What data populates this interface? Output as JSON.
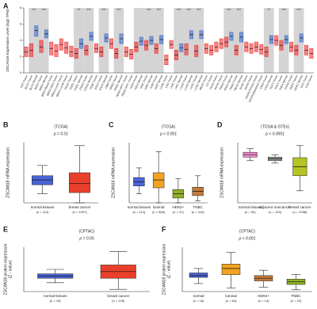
{
  "chart_data": [
    {
      "panel_label": "A",
      "type": "box",
      "y_label": [
        "ZSCAN18 Expression Level (log2 TPM)"
      ],
      "ylim": [
        0,
        8
      ],
      "yticks": [
        0,
        2,
        4,
        6,
        8
      ],
      "categories": [
        "ACC Tumor",
        "BLCA Tumor",
        "BLCA Normal",
        "BRCA Tumor",
        "BRCA Normal",
        "BRCA-Basal Tumor",
        "BRCA-Her2 Tumor",
        "BRCA-LumA Tumor",
        "BRCA-LumB Tumor",
        "CESC Tumor",
        "CHOL Tumor",
        "CHOL Normal",
        "COAD Tumor",
        "COAD Normal",
        "DLBC Tumor",
        "ESCA Tumor",
        "ESCA Normal",
        "GBM Tumor",
        "HNSC Tumor",
        "HNSC Normal",
        "HNSC-HPV+ Tumor",
        "HNSC-HPV- Tumor",
        "KICH Tumor",
        "KICH Normal",
        "KIRC Tumor",
        "KIRC Normal",
        "KIRP Tumor",
        "KIRP Normal",
        "LAML Tumor",
        "LGG Tumor",
        "LIHC Tumor",
        "LIHC Normal",
        "LUAD Tumor",
        "LUAD Normal",
        "LUSC Tumor",
        "LUSC Normal",
        "MESO Tumor",
        "OV Tumor",
        "PAAD Tumor",
        "PCPG Tumor",
        "PRAD Tumor",
        "PRAD Normal",
        "READ Tumor",
        "READ Normal",
        "SARC Tumor",
        "SKCM Tumor",
        "SKCM.Primary Tumor",
        "SKCM.Metastasis Tumor",
        "STAD Tumor",
        "STAD Normal",
        "TGCT Tumor",
        "THCA Tumor",
        "THCA Normal",
        "THYM Tumor",
        "UCEC Tumor",
        "UCEC Normal",
        "UCS Tumor",
        "UVM Tumor"
      ],
      "q1": [
        2.0,
        2.0,
        4.5,
        2.5,
        4.3,
        2.2,
        2.0,
        2.8,
        2.4,
        2.0,
        1.8,
        3.0,
        2.2,
        4.0,
        2.5,
        2.0,
        3.8,
        3.0,
        1.8,
        3.6,
        2.0,
        1.7,
        2.6,
        3.4,
        2.8,
        3.5,
        2.4,
        3.6,
        1.0,
        3.0,
        1.6,
        2.6,
        2.2,
        4.2,
        2.0,
        4.2,
        2.4,
        2.2,
        2.6,
        3.0,
        3.2,
        4.0,
        2.2,
        3.8,
        2.6,
        2.4,
        2.6,
        2.3,
        2.0,
        3.6,
        3.4,
        2.8,
        3.6,
        2.6,
        2.2,
        3.8,
        2.2,
        1.8
      ],
      "median": [
        2.6,
        2.8,
        5.2,
        3.2,
        4.8,
        3.0,
        2.7,
        3.5,
        3.1,
        2.6,
        2.4,
        3.6,
        2.8,
        4.5,
        3.0,
        2.6,
        4.3,
        3.6,
        2.4,
        4.2,
        2.6,
        2.3,
        3.2,
        3.9,
        3.4,
        4.0,
        3.0,
        4.1,
        1.6,
        3.5,
        2.2,
        3.1,
        2.9,
        4.7,
        2.7,
        4.7,
        3.0,
        2.8,
        3.2,
        3.6,
        3.8,
        4.5,
        2.8,
        4.4,
        3.2,
        3.0,
        3.2,
        2.9,
        2.6,
        4.1,
        4.0,
        3.4,
        4.1,
        3.2,
        2.8,
        4.3,
        2.8,
        2.4
      ],
      "q3": [
        3.2,
        3.6,
        5.8,
        4.0,
        5.3,
        3.8,
        3.5,
        4.2,
        3.8,
        3.3,
        3.0,
        4.2,
        3.4,
        5.0,
        3.6,
        3.2,
        4.8,
        4.2,
        3.0,
        4.8,
        3.2,
        2.9,
        3.8,
        4.4,
        4.0,
        4.5,
        3.6,
        4.6,
        2.2,
        4.0,
        2.8,
        3.6,
        3.6,
        5.2,
        3.4,
        5.2,
        3.6,
        3.4,
        3.8,
        4.2,
        4.4,
        5.0,
        3.4,
        5.0,
        3.8,
        3.6,
        3.8,
        3.5,
        3.2,
        4.6,
        4.6,
        4.0,
        4.6,
        3.8,
        3.4,
        4.8,
        3.4,
        3.0
      ],
      "colors": [
        "#e22",
        "#e22",
        "#36c",
        "#e22",
        "#36c",
        "#e22",
        "#e22",
        "#e22",
        "#e22",
        "#e22",
        "#e22",
        "#36c",
        "#e22",
        "#36c",
        "#e22",
        "#e22",
        "#36c",
        "#e22",
        "#e22",
        "#36c",
        "#e22",
        "#e22",
        "#e22",
        "#36c",
        "#e22",
        "#36c",
        "#e22",
        "#36c",
        "#e22",
        "#e22",
        "#e22",
        "#36c",
        "#e22",
        "#36c",
        "#e22",
        "#36c",
        "#e22",
        "#e22",
        "#e22",
        "#e22",
        "#e22",
        "#36c",
        "#e22",
        "#36c",
        "#e22",
        "#e22",
        "#e22",
        "#e22",
        "#e22",
        "#36c",
        "#e22",
        "#e22",
        "#36c",
        "#e22",
        "#e22",
        "#36c",
        "#e22",
        "#e22"
      ],
      "annotations": [
        {
          "index": 1,
          "text": "***"
        },
        {
          "index": 3,
          "text": "***"
        },
        {
          "index": 10,
          "text": "**"
        },
        {
          "index": 12,
          "text": "***"
        },
        {
          "index": 15,
          "text": "***"
        },
        {
          "index": 18,
          "text": "***"
        },
        {
          "index": 24,
          "text": "***"
        },
        {
          "index": 26,
          "text": "***"
        },
        {
          "index": 30,
          "text": "***"
        },
        {
          "index": 32,
          "text": "***"
        },
        {
          "index": 34,
          "text": "***"
        },
        {
          "index": 40,
          "text": "***"
        },
        {
          "index": 42,
          "text": "***"
        },
        {
          "index": 48,
          "text": "**"
        },
        {
          "index": 51,
          "text": "***"
        },
        {
          "index": 54,
          "text": "***"
        }
      ]
    },
    {
      "panel_label": "B",
      "type": "box",
      "title": "(TCGA)",
      "annotation": "p = 0.01",
      "y_label": [
        "ZSCAN18 mRNA expression"
      ],
      "ylim": [
        0,
        10
      ],
      "categories": [
        "normal tissues",
        "breast cancer"
      ],
      "n_labels": [
        "(n = 114)",
        "(n = 1097)"
      ],
      "low": [
        1.5,
        0
      ],
      "q1": [
        3.0,
        1.7
      ],
      "median": [
        3.8,
        3.2
      ],
      "q3": [
        4.5,
        5.0
      ],
      "high": [
        6.2,
        9.5
      ],
      "colors": [
        "#4a64d8",
        "#e8402a"
      ]
    },
    {
      "panel_label": "C",
      "type": "box",
      "title": "(TCGA)",
      "annotation": "p < 0.001",
      "y_label": [
        "ZSCAN18 mRNA expression"
      ],
      "ylim": [
        0,
        10
      ],
      "categories": [
        "normal tissues",
        "luminal",
        "HER2+",
        "TNBC"
      ],
      "n_labels": [
        "(n = 114)",
        "(n = 566)",
        "(n = 37)",
        "(n = 116)"
      ],
      "low": [
        1.5,
        0,
        0,
        0.3
      ],
      "q1": [
        2.8,
        2.5,
        0.8,
        1.2
      ],
      "median": [
        3.5,
        3.8,
        1.5,
        1.9
      ],
      "q3": [
        4.2,
        5.0,
        2.2,
        2.6
      ],
      "high": [
        5.8,
        8.5,
        4.0,
        4.5
      ],
      "colors": [
        "#4a64d8",
        "#f2a324",
        "#8fb226",
        "#c27a3a"
      ]
    },
    {
      "panel_label": "D",
      "type": "box",
      "title": "(TCGA & GTEx)",
      "annotation": "p < 0.0001",
      "y_label": [
        "ZSCAN18 mRNA expression"
      ],
      "ylim": [
        0,
        10
      ],
      "categories": [
        "normal tissues",
        "adjacent noncancer",
        "breast cancer"
      ],
      "n_labels": [
        "(n = 92)",
        "(n = 104)",
        "(n = 1038)"
      ],
      "low": [
        7.0,
        6.6,
        2.0
      ],
      "q1": [
        7.6,
        7.0,
        4.5
      ],
      "median": [
        8.0,
        7.3,
        6.0
      ],
      "q3": [
        8.4,
        7.6,
        7.5
      ],
      "high": [
        9.0,
        8.0,
        9.5
      ],
      "colors": [
        "#f08ac8",
        "#9a9a9a",
        "#b4c424"
      ]
    },
    {
      "panel_label": "E",
      "type": "box",
      "title": "(CPTAC)",
      "annotation": "p = 0.05",
      "y_label": [
        "ZSCAN18 protein expression",
        "(Z - value)"
      ],
      "ylim": [
        0,
        10
      ],
      "categories": [
        "normal tissues",
        "breast cancer"
      ],
      "n_labels": [
        "(n = 18)",
        "(n = 125)"
      ],
      "low": [
        2.0,
        0.5
      ],
      "q1": [
        3.0,
        3.0
      ],
      "median": [
        3.5,
        4.5
      ],
      "q3": [
        4.0,
        6.0
      ],
      "high": [
        5.0,
        9.0
      ],
      "colors": [
        "#4a64d8",
        "#e8402a"
      ]
    },
    {
      "panel_label": "F",
      "type": "box",
      "title": "(CPTAC)",
      "annotation": "p < 0.001",
      "y_label": [
        "ZSCAN18 protein expression",
        "(Z - value)"
      ],
      "ylim": [
        0,
        10
      ],
      "categories": [
        "normal",
        "luminal",
        "HER2+",
        "TNBC"
      ],
      "n_labels": [
        "(n = 18)",
        "(n = 64)",
        "(n = 14)",
        "(n = 20)"
      ],
      "low": [
        1.8,
        0.8,
        1.0,
        0.4
      ],
      "q1": [
        3.2,
        3.8,
        2.4,
        1.6
      ],
      "median": [
        3.6,
        5.2,
        3.0,
        2.2
      ],
      "q3": [
        4.2,
        6.2,
        3.6,
        2.8
      ],
      "high": [
        5.2,
        8.8,
        4.8,
        3.8
      ],
      "colors": [
        "#4a64d8",
        "#f2a324",
        "#c27a3a",
        "#8fb226"
      ]
    }
  ]
}
